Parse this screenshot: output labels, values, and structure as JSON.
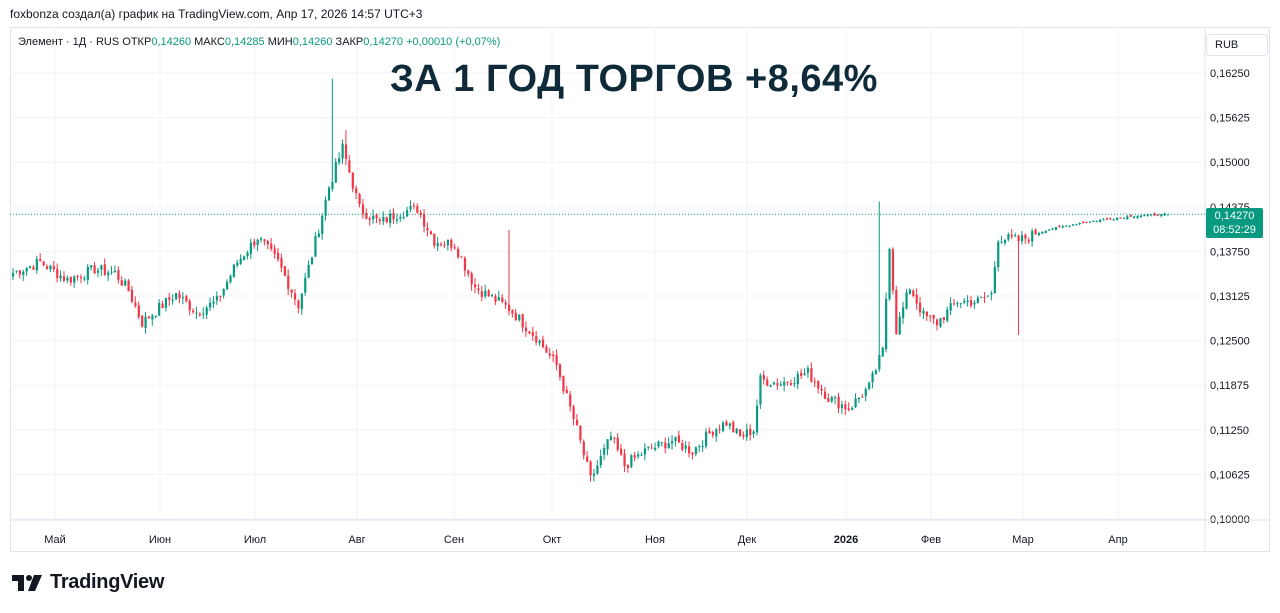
{
  "header": {
    "credit": "foxbonza создал(а) график на TradingView.com, Апр 17, 2026 14:57 UTC+3"
  },
  "legend": {
    "symbol": "Элемент · 1Д · RUS",
    "open_label": "ОТКР",
    "open": "0,14260",
    "high_label": "МАКС",
    "high": "0,14285",
    "low_label": "МИН",
    "low": "0,14260",
    "close_label": "ЗАКР",
    "close": "0,14270",
    "change": "+0,00010 (+0,07%)"
  },
  "overlay_title": "ЗА 1 ГОД ТОРГОВ +8,64%",
  "currency": "RUB",
  "price_tag": {
    "price": "0,14270",
    "countdown": "08:52:29"
  },
  "brand": {
    "name": "TradingView"
  },
  "colors": {
    "up": "#089981",
    "down": "#f23645",
    "last_line": "#089981",
    "grid": "#f0f3fa"
  },
  "chart_data": {
    "type": "candlestick",
    "y_ticks": [
      "0,16250",
      "0,15625",
      "0,15000",
      "0,14375",
      "0,13750",
      "0,13125",
      "0,12500",
      "0,11875",
      "0,11250",
      "0,10625",
      "0,10000"
    ],
    "y_range": [
      0.1,
      0.1625
    ],
    "x_ticks": [
      "Май",
      "Июн",
      "Июл",
      "Авг",
      "Сен",
      "Окт",
      "Ноя",
      "Дек",
      "2026",
      "Фев",
      "Мар",
      "Апр"
    ],
    "last_price": 0.1427,
    "close_anchors": [
      {
        "d": 0,
        "c": 0.1345
      },
      {
        "d": 8,
        "c": 0.136
      },
      {
        "d": 16,
        "c": 0.1335
      },
      {
        "d": 24,
        "c": 0.135
      },
      {
        "d": 30,
        "c": 0.1345
      },
      {
        "d": 34,
        "c": 0.132
      },
      {
        "d": 38,
        "c": 0.1275
      },
      {
        "d": 44,
        "c": 0.13
      },
      {
        "d": 48,
        "c": 0.1315
      },
      {
        "d": 54,
        "c": 0.129
      },
      {
        "d": 60,
        "c": 0.1305
      },
      {
        "d": 66,
        "c": 0.136
      },
      {
        "d": 72,
        "c": 0.1395
      },
      {
        "d": 78,
        "c": 0.136
      },
      {
        "d": 84,
        "c": 0.13
      },
      {
        "d": 88,
        "c": 0.137
      },
      {
        "d": 93,
        "c": 0.1465
      },
      {
        "d": 97,
        "c": 0.152
      },
      {
        "d": 102,
        "c": 0.1435
      },
      {
        "d": 108,
        "c": 0.1415
      },
      {
        "d": 114,
        "c": 0.143
      },
      {
        "d": 119,
        "c": 0.1435
      },
      {
        "d": 124,
        "c": 0.139
      },
      {
        "d": 130,
        "c": 0.1385
      },
      {
        "d": 136,
        "c": 0.1325
      },
      {
        "d": 146,
        "c": 0.1295
      },
      {
        "d": 154,
        "c": 0.1255
      },
      {
        "d": 160,
        "c": 0.1215
      },
      {
        "d": 166,
        "c": 0.1125
      },
      {
        "d": 170,
        "c": 0.1055
      },
      {
        "d": 176,
        "c": 0.1115
      },
      {
        "d": 180,
        "c": 0.1075
      },
      {
        "d": 186,
        "c": 0.1095
      },
      {
        "d": 194,
        "c": 0.111
      },
      {
        "d": 200,
        "c": 0.1095
      },
      {
        "d": 206,
        "c": 0.1125
      },
      {
        "d": 210,
        "c": 0.1135
      },
      {
        "d": 214,
        "c": 0.1115
      },
      {
        "d": 218,
        "c": 0.1125
      },
      {
        "d": 220,
        "c": 0.1195
      },
      {
        "d": 226,
        "c": 0.119
      },
      {
        "d": 234,
        "c": 0.1205
      },
      {
        "d": 240,
        "c": 0.117
      },
      {
        "d": 246,
        "c": 0.1155
      },
      {
        "d": 252,
        "c": 0.1185
      },
      {
        "d": 256,
        "c": 0.1235
      },
      {
        "d": 258,
        "c": 0.1385
      },
      {
        "d": 260,
        "c": 0.1265
      },
      {
        "d": 264,
        "c": 0.1325
      },
      {
        "d": 268,
        "c": 0.1285
      },
      {
        "d": 272,
        "c": 0.1275
      },
      {
        "d": 278,
        "c": 0.1305
      },
      {
        "d": 284,
        "c": 0.1305
      },
      {
        "d": 288,
        "c": 0.1315
      },
      {
        "d": 290,
        "c": 0.1395
      },
      {
        "d": 296,
        "c": 0.139
      },
      {
        "d": 304,
        "c": 0.1405
      },
      {
        "d": 314,
        "c": 0.1415
      },
      {
        "d": 330,
        "c": 0.1425
      },
      {
        "d": 340,
        "c": 0.1427
      }
    ],
    "wick_spikes": [
      {
        "d": 94,
        "h": 0.1617
      },
      {
        "d": 98,
        "h": 0.1545
      },
      {
        "d": 146,
        "h": 0.1405
      },
      {
        "d": 255,
        "h": 0.1445
      },
      {
        "d": 296,
        "l": 0.1258
      }
    ]
  }
}
